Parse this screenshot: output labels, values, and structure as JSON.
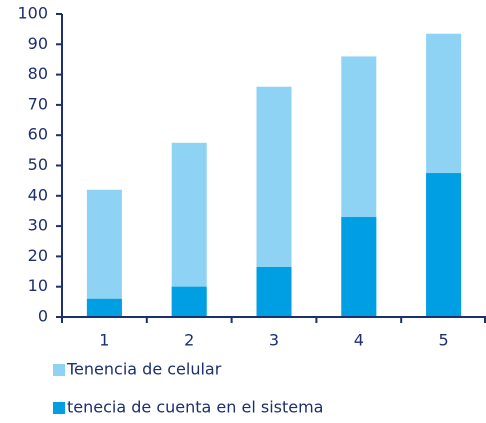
{
  "chart_data": {
    "type": "bar",
    "overlap": true,
    "categories": [
      "1",
      "2",
      "3",
      "4",
      "5"
    ],
    "series": [
      {
        "name": "Tenencia de celular",
        "color": "#8ed3f3",
        "values": [
          42,
          57.5,
          76,
          86,
          93.5
        ]
      },
      {
        "name": "tenecia de cuenta en el sistema",
        "color": "#009fe3",
        "values": [
          6,
          10,
          16.5,
          33,
          47.5
        ]
      }
    ],
    "ylim": [
      0,
      100
    ],
    "yticks": [
      0,
      10,
      20,
      30,
      40,
      50,
      60,
      70,
      80,
      90,
      100
    ],
    "grid": false
  }
}
